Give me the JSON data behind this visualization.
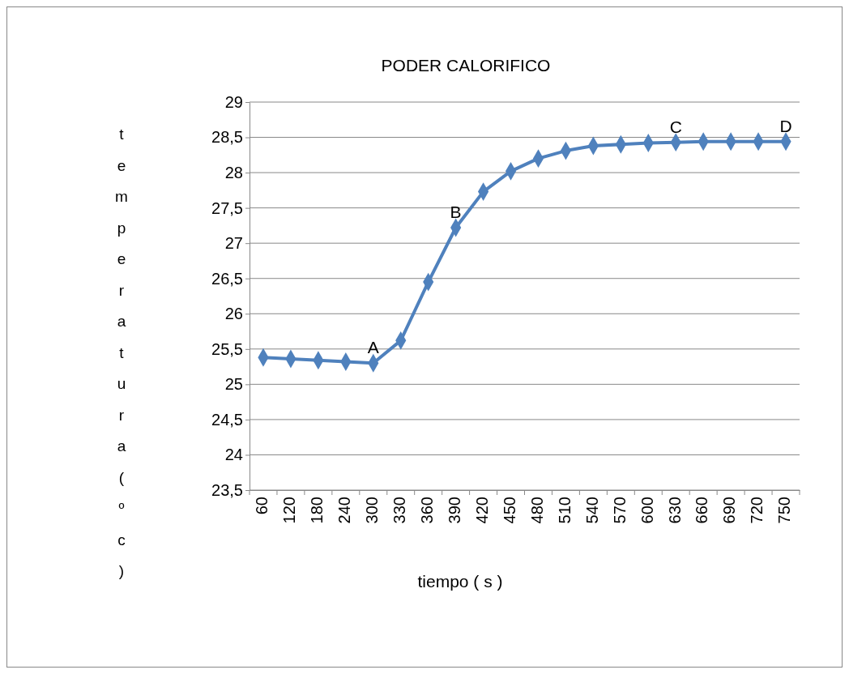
{
  "chart_data": {
    "type": "line",
    "title": "PODER CALORIFICO",
    "xlabel": "tiempo ( s )",
    "ylabel": "temperatura ( º c )",
    "categories": [
      "60",
      "120",
      "180",
      "240",
      "300",
      "330",
      "360",
      "390",
      "420",
      "450",
      "480",
      "510",
      "540",
      "570",
      "600",
      "630",
      "660",
      "690",
      "720",
      "750"
    ],
    "series": [
      {
        "color": "#4f81bd",
        "values": [
          25.38,
          25.36,
          25.34,
          25.32,
          25.3,
          25.62,
          26.45,
          27.22,
          27.73,
          28.02,
          28.2,
          28.31,
          28.38,
          28.4,
          28.42,
          28.43,
          28.44,
          28.44,
          28.44,
          28.44
        ]
      }
    ],
    "ylim": [
      23.5,
      29
    ],
    "yticks": [
      {
        "value": 23.5,
        "label": "23,5"
      },
      {
        "value": 24,
        "label": "24"
      },
      {
        "value": 24.5,
        "label": "24,5"
      },
      {
        "value": 25,
        "label": "25"
      },
      {
        "value": 25.5,
        "label": "25,5"
      },
      {
        "value": 26,
        "label": "26"
      },
      {
        "value": 26.5,
        "label": "26,5"
      },
      {
        "value": 27,
        "label": "27"
      },
      {
        "value": 27.5,
        "label": "27,5"
      },
      {
        "value": 28,
        "label": "28"
      },
      {
        "value": 28.5,
        "label": "28,5"
      },
      {
        "value": 29,
        "label": "29"
      }
    ],
    "annotations": [
      {
        "text": "A",
        "x": "300",
        "y": 25.3
      },
      {
        "text": "B",
        "x": "390",
        "y": 27.22
      },
      {
        "text": "C",
        "x": "630",
        "y": 28.43
      },
      {
        "text": "D",
        "x": "750",
        "y": 28.44
      }
    ],
    "grid": "y",
    "marker": "diamond",
    "line_style": "solid"
  }
}
